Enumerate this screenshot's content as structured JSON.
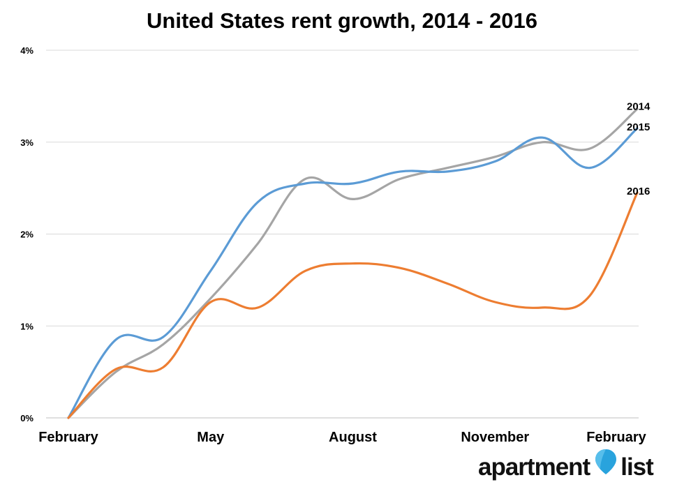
{
  "chart_data": {
    "type": "line",
    "title": "United States rent growth, 2014 - 2016",
    "xlabel": "",
    "ylabel": "",
    "x_tick_labels": [
      "February",
      "May",
      "August",
      "November",
      "February"
    ],
    "x_tick_positions": [
      0,
      3,
      6,
      9,
      12
    ],
    "x_range": [
      0,
      12
    ],
    "y_tick_labels": [
      "0%",
      "1%",
      "2%",
      "3%",
      "4%"
    ],
    "y_ticks": [
      0,
      1,
      2,
      3,
      4
    ],
    "ylim": [
      0,
      4
    ],
    "grid": "horizontal",
    "legend": "series labels at line ends (right)",
    "series": [
      {
        "name": "2014",
        "color": "#a5a5a5",
        "points": [
          [
            0,
            0
          ],
          [
            1,
            0.5
          ],
          [
            2,
            0.8
          ],
          [
            3,
            1.3
          ],
          [
            4,
            1.9
          ],
          [
            5,
            2.6
          ],
          [
            6,
            2.38
          ],
          [
            7,
            2.6
          ],
          [
            8,
            2.72
          ],
          [
            9,
            2.84
          ],
          [
            10,
            3.0
          ],
          [
            11,
            2.93
          ],
          [
            12,
            3.36
          ]
        ]
      },
      {
        "name": "2015",
        "color": "#5b9bd5",
        "points": [
          [
            0,
            0
          ],
          [
            1,
            0.85
          ],
          [
            2,
            0.88
          ],
          [
            3,
            1.6
          ],
          [
            4,
            2.35
          ],
          [
            5,
            2.55
          ],
          [
            6,
            2.55
          ],
          [
            7,
            2.68
          ],
          [
            8,
            2.68
          ],
          [
            9,
            2.79
          ],
          [
            10,
            3.05
          ],
          [
            11,
            2.72
          ],
          [
            12,
            3.15
          ]
        ]
      },
      {
        "name": "2016",
        "color": "#ed7d31",
        "points": [
          [
            0,
            0
          ],
          [
            1,
            0.53
          ],
          [
            2,
            0.55
          ],
          [
            3,
            1.26
          ],
          [
            4,
            1.2
          ],
          [
            5,
            1.6
          ],
          [
            6,
            1.68
          ],
          [
            7,
            1.63
          ],
          [
            8,
            1.46
          ],
          [
            9,
            1.26
          ],
          [
            10,
            1.2
          ],
          [
            11,
            1.33
          ],
          [
            12,
            2.45
          ]
        ]
      }
    ]
  },
  "logo": {
    "text_left": "apartment",
    "text_right": "list",
    "pin_color": "#29a3dd"
  }
}
